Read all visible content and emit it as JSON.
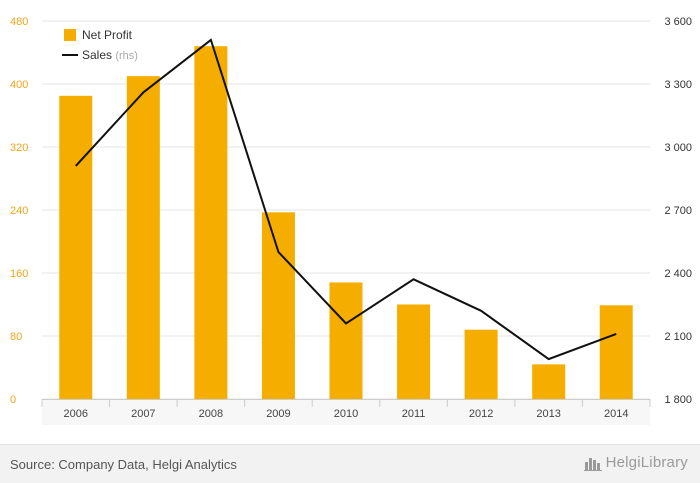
{
  "chart_data": {
    "type": "bar",
    "categories": [
      "2006",
      "2007",
      "2008",
      "2009",
      "2010",
      "2011",
      "2012",
      "2013",
      "2014"
    ],
    "series": [
      {
        "name": "Net Profit",
        "type": "bar",
        "axis": "left",
        "color": "#f5ad00",
        "values": [
          385,
          410,
          448,
          237,
          148,
          120,
          88,
          44,
          119
        ]
      },
      {
        "name": "Sales",
        "unit_label": "(rhs)",
        "type": "line",
        "axis": "right",
        "color": "#111111",
        "values": [
          2910,
          3260,
          3510,
          2500,
          2160,
          2370,
          2220,
          1990,
          2110
        ]
      }
    ],
    "y_left": {
      "ylim": [
        0,
        480
      ],
      "ticks": [
        "0",
        "80",
        "160",
        "240",
        "320",
        "400",
        "480"
      ]
    },
    "y_right": {
      "ylim": [
        1800,
        3600
      ],
      "ticks": [
        "1 800",
        "2 100",
        "2 400",
        "2 700",
        "3 000",
        "3 300",
        "3 600"
      ]
    },
    "grid": true,
    "legend": "top-left"
  },
  "footer": {
    "source": "Source: Company Data, Helgi Analytics",
    "brand": "HelgiLibrary",
    "brand_icon": "city-skyline-icon"
  }
}
